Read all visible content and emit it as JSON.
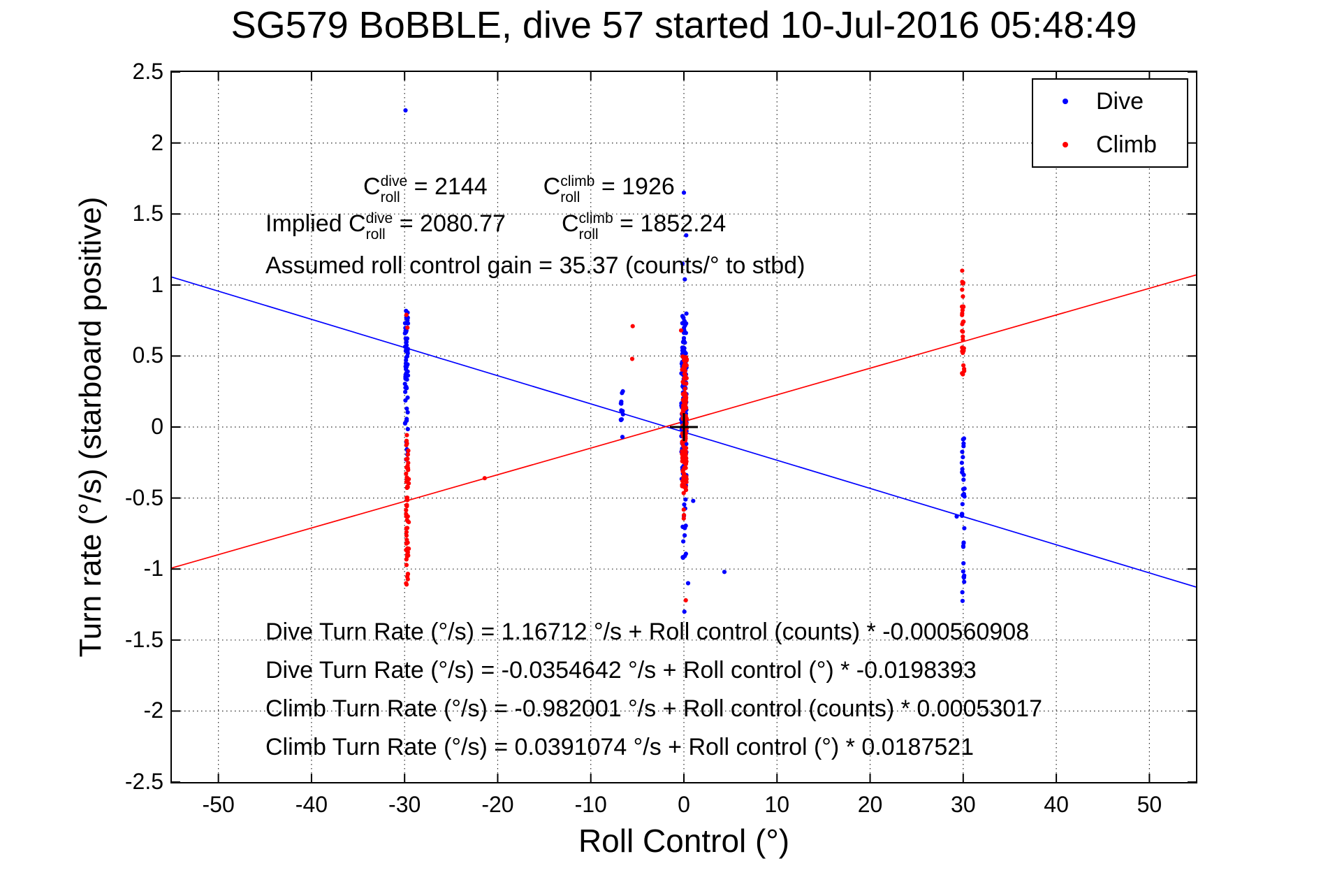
{
  "title": "SG579 BoBBLE, dive 57 started 10-Jul-2016 05:48:49",
  "annotations": {
    "croll_line1": {
      "segments": [
        {
          "text": "C"
        },
        {
          "sup": "dive",
          "sub": "roll"
        },
        {
          "text": " = 2144"
        },
        {
          "gap": 80
        },
        {
          "text": "C"
        },
        {
          "sup": "climb",
          "sub": "roll"
        },
        {
          "text": " = 1926"
        }
      ]
    },
    "croll_line2": {
      "segments": [
        {
          "text": "Implied C"
        },
        {
          "sup": "dive",
          "sub": "roll"
        },
        {
          "text": " = 2080.77"
        },
        {
          "gap": 80
        },
        {
          "text": "C"
        },
        {
          "sup": "climb",
          "sub": "roll"
        },
        {
          "text": " = 1852.24"
        }
      ]
    },
    "gain_line": "Assumed roll control gain = 35.37 (counts/° to stbd)",
    "equations": [
      "Dive Turn Rate (°/s) = 1.16712 °/s + Roll control (counts) * -0.000560908",
      "Dive Turn Rate (°/s) = -0.0354642 °/s + Roll control (°) * -0.0198393",
      "Climb Turn Rate (°/s) = -0.982001 °/s + Roll control (counts) * 0.00053017",
      "Climb Turn Rate (°/s) = 0.0391074 °/s + Roll control (°) * 0.0187521"
    ]
  },
  "legend": {
    "items": [
      {
        "label": "Dive",
        "color": "#0000ff"
      },
      {
        "label": "Climb",
        "color": "#ff0000"
      }
    ]
  },
  "chart_data": {
    "type": "scatter",
    "title": "SG579 BoBBLE, dive 57 started 10-Jul-2016 05:48:49",
    "xlabel": "Roll Control (°)",
    "ylabel": "Turn rate (°/s) (starboard positive)",
    "xlim": [
      -55,
      55
    ],
    "ylim": [
      -2.5,
      2.5
    ],
    "xticks": [
      -50,
      -40,
      -30,
      -20,
      -10,
      0,
      10,
      20,
      30,
      40,
      50
    ],
    "xtick_labels": [
      "-50",
      "-40",
      "-30",
      "-20",
      "-10",
      "0",
      "10",
      "20",
      "30",
      "40",
      "50"
    ],
    "yticks": [
      -2.5,
      -2,
      -1.5,
      -1,
      -0.5,
      0,
      0.5,
      1,
      1.5,
      2,
      2.5
    ],
    "ytick_labels": [
      "-2.5",
      "-2",
      "-1.5",
      "-1",
      "-0.5",
      "0",
      "0.5",
      "1",
      "1.5",
      "2",
      "2.5"
    ],
    "grid": true,
    "legend_position": "top-right",
    "series": [
      {
        "name": "Dive",
        "color": "#0000ff",
        "marker": "dot",
        "clusters": [
          {
            "x": -29.8,
            "xs": 0.18,
            "n": 48,
            "y0": 0.3,
            "y1": 0.82
          },
          {
            "x": -29.8,
            "xs": 0.15,
            "n": 12,
            "y0": 0.02,
            "y1": 0.3
          },
          {
            "x": -29.75,
            "xs": 0.1,
            "n": 6,
            "y0": -0.25,
            "y1": 0.0
          },
          {
            "x": -6.65,
            "xs": 0.12,
            "n": 11,
            "y0": 0.04,
            "y1": 0.3
          },
          {
            "x": 0.0,
            "xs": 0.28,
            "n": 150,
            "y0": -0.38,
            "y1": 0.56
          },
          {
            "x": 0.05,
            "xs": 0.22,
            "n": 20,
            "y0": 0.56,
            "y1": 0.86
          },
          {
            "x": 0.05,
            "xs": 0.18,
            "n": 15,
            "y0": -0.95,
            "y1": -0.4
          },
          {
            "x": 30.0,
            "xs": 0.15,
            "n": 26,
            "y0": -0.95,
            "y1": -0.05
          },
          {
            "x": 30.0,
            "xs": 0.12,
            "n": 8,
            "y0": -1.32,
            "y1": -0.95
          }
        ],
        "points": [
          [
            -29.9,
            2.23
          ],
          [
            -6.6,
            -0.07
          ],
          [
            0.0,
            1.65
          ],
          [
            0.25,
            1.35
          ],
          [
            -0.15,
            1.15
          ],
          [
            0.1,
            1.04
          ],
          [
            0.05,
            -1.3
          ],
          [
            0.45,
            -1.1
          ],
          [
            4.35,
            -1.02
          ],
          [
            29.3,
            -0.63
          ],
          [
            1.0,
            -0.52
          ]
        ]
      },
      {
        "name": "Climb",
        "color": "#ff0000",
        "marker": "dot",
        "clusters": [
          {
            "x": -29.7,
            "xs": 0.15,
            "n": 44,
            "y0": -1.05,
            "y1": -0.28
          },
          {
            "x": -29.7,
            "xs": 0.12,
            "n": 10,
            "y0": -0.28,
            "y1": -0.05
          },
          {
            "x": -29.75,
            "xs": 0.1,
            "n": 4,
            "y0": -1.13,
            "y1": -1.05
          },
          {
            "x": 0.05,
            "xs": 0.25,
            "n": 140,
            "y0": -0.42,
            "y1": 0.5
          },
          {
            "x": 0.1,
            "xs": 0.15,
            "n": 8,
            "y0": -0.75,
            "y1": -0.42
          },
          {
            "x": 30.0,
            "xs": 0.13,
            "n": 24,
            "y0": 0.36,
            "y1": 0.85
          },
          {
            "x": 29.95,
            "xs": 0.1,
            "n": 6,
            "y0": 0.85,
            "y1": 1.12
          }
        ],
        "points": [
          [
            -29.8,
            0.79
          ],
          [
            -29.7,
            0.7
          ],
          [
            -21.4,
            -0.36
          ],
          [
            -5.5,
            0.71
          ],
          [
            -5.55,
            0.48
          ],
          [
            0.2,
            -1.22
          ],
          [
            -0.3,
            0.68
          ]
        ]
      }
    ],
    "fit_lines": [
      {
        "name": "dive-fit",
        "color": "#0000ff",
        "intercept": -0.0354642,
        "slope": -0.0198393
      },
      {
        "name": "climb-fit",
        "color": "#ff0000",
        "intercept": 0.0391074,
        "slope": 0.0187521
      }
    ],
    "origin_marker": {
      "x": 0,
      "y": 0,
      "color": "#000000"
    }
  }
}
